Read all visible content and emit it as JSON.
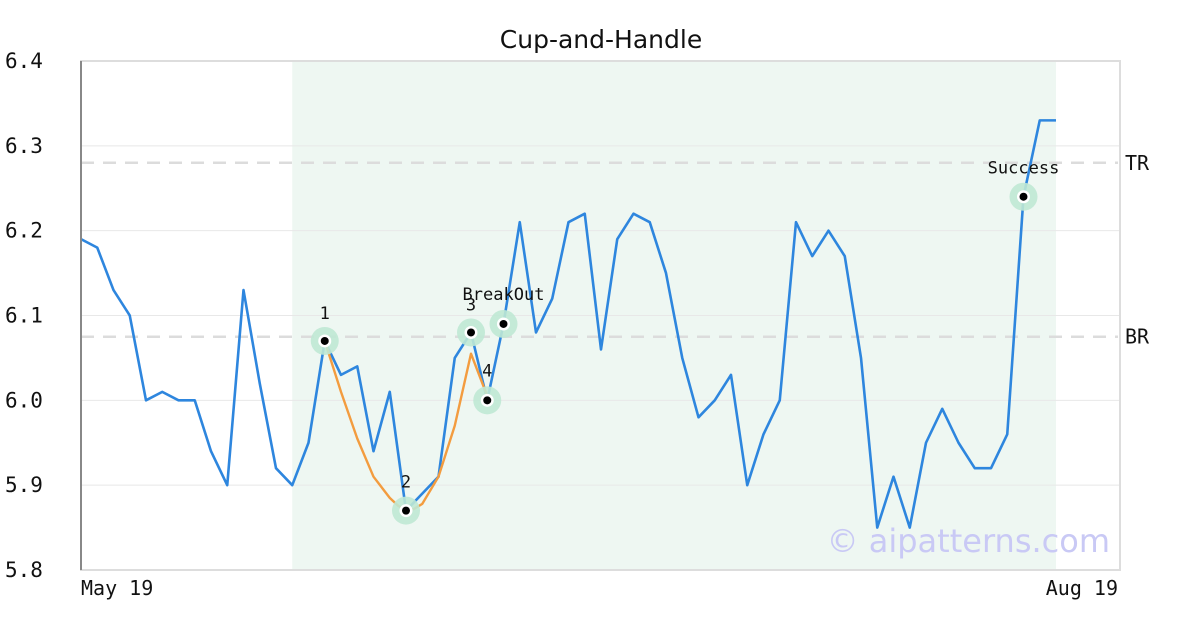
{
  "chart_data": {
    "type": "line",
    "title": "Cup-and-Handle",
    "xlabel": "",
    "ylabel": "",
    "ylim": [
      5.8,
      6.4
    ],
    "yticks": [
      "6.4",
      "6.3",
      "6.2",
      "6.1",
      "6.0",
      "5.9",
      "5.8"
    ],
    "xtick_labels": [
      "May 19",
      "Aug 19"
    ],
    "grid": "horizontal",
    "colors": {
      "price": "#2e86de",
      "pattern": "#f39c3f",
      "highlight_band": "#eef7f2",
      "marker_halo": "#bfe8d4",
      "reference_line": "#dcdcdc",
      "watermark": "#c9c9f5"
    },
    "series": [
      {
        "values": [
          6.19,
          6.18,
          6.13,
          6.1,
          6.0,
          6.01,
          6.0,
          6.0,
          5.94,
          5.9,
          6.13,
          6.02,
          5.92,
          5.9,
          5.95,
          6.07,
          6.03,
          6.04,
          5.94,
          6.01,
          5.87,
          5.89,
          5.91,
          6.05,
          6.08,
          6.0,
          6.09,
          6.21,
          6.08,
          6.12,
          6.21,
          6.22,
          6.06,
          6.19,
          6.22,
          6.21,
          6.15,
          6.05,
          5.98,
          6.0,
          6.03,
          5.9,
          5.96,
          6.0,
          6.21,
          6.17,
          6.2,
          6.17,
          6.05,
          5.85,
          5.91,
          5.85,
          5.95,
          5.99,
          5.95,
          5.92,
          5.92,
          5.96,
          6.24,
          6.33,
          6.33
        ]
      }
    ],
    "pattern_line": {
      "x": [
        15,
        16,
        17,
        18,
        19,
        19.5,
        20,
        20.5,
        21,
        22,
        23,
        24,
        25
      ],
      "values": [
        6.07,
        6.01,
        5.955,
        5.91,
        5.885,
        5.876,
        5.87,
        5.872,
        5.878,
        5.91,
        5.97,
        6.055,
        6.005
      ]
    },
    "highlight_range": [
      13,
      60
    ],
    "reference_lines": [
      {
        "label": "TR",
        "value": 6.28
      },
      {
        "label": "BR",
        "value": 6.075
      }
    ],
    "annotations": [
      {
        "label": "1",
        "x": 15,
        "value": 6.07
      },
      {
        "label": "2",
        "x": 20,
        "value": 5.87
      },
      {
        "label": "3",
        "x": 24,
        "value": 6.08
      },
      {
        "label": "4",
        "x": 25,
        "value": 6.0
      },
      {
        "label": "BreakOut",
        "x": 26,
        "value": 6.09
      },
      {
        "label": "Success",
        "x": 58,
        "value": 6.24
      }
    ],
    "watermark": "© aipatterns.com"
  }
}
